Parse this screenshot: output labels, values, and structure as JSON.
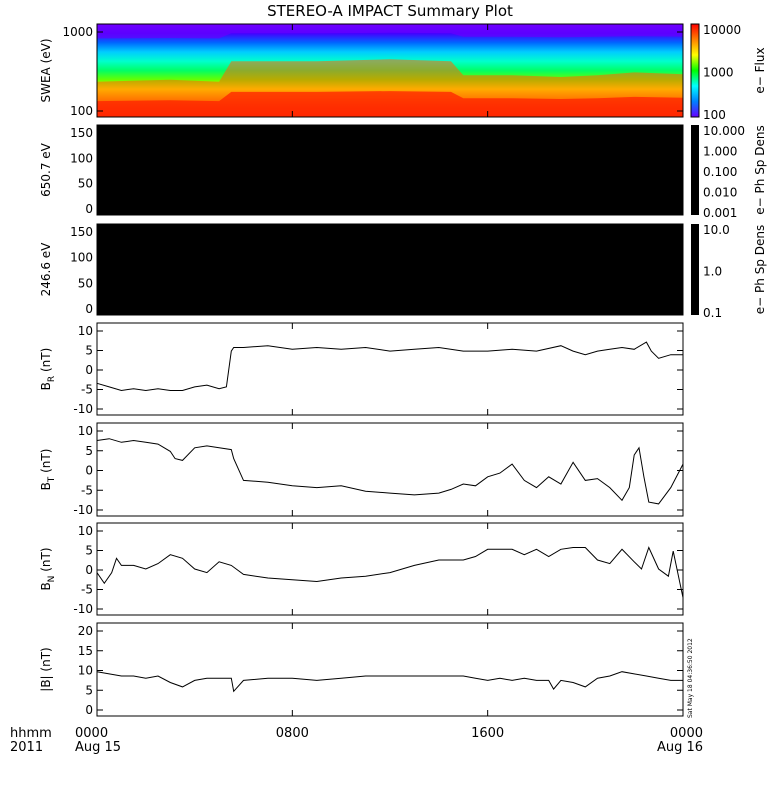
{
  "title": "STEREO-A IMPACT Summary Plot",
  "x_axis": {
    "left_label_line1": "hhmm",
    "left_label_line2": "2011",
    "ticks": [
      {
        "hour": 0,
        "line1": "0000",
        "line2": "Aug 15"
      },
      {
        "hour": 8,
        "line1": "0800",
        "line2": ""
      },
      {
        "hour": 16,
        "line1": "1600",
        "line2": ""
      },
      {
        "hour": 24,
        "line1": "0000",
        "line2": "Aug 16"
      }
    ]
  },
  "timestamp": "Sat May 18 04:36:50 2012",
  "colors": {
    "axis": "#000000",
    "line": "#000000",
    "background": "#ffffff",
    "fill_black": "#000000"
  },
  "chart_data": [
    {
      "type": "heatmap",
      "ylabel": "SWEA (eV)",
      "y_scale": "log",
      "y_ticks": [
        "1000",
        "100"
      ],
      "colorbar_label": "e− Flux",
      "colorbar_ticks": [
        "10000",
        "1000",
        "100"
      ],
      "colorbar_colors": [
        "#ff0000",
        "#ff8000",
        "#ffff00",
        "#00ff00",
        "#00ffff",
        "#0080ff",
        "#6600ff"
      ],
      "profile_hours": [
        0,
        3,
        5,
        5.5,
        9,
        12,
        14.5,
        15,
        17,
        19,
        20.5,
        22,
        24
      ],
      "profile_levels": [
        0.38,
        0.4,
        0.38,
        0.6,
        0.6,
        0.62,
        0.6,
        0.45,
        0.45,
        0.43,
        0.45,
        0.48,
        0.46
      ]
    },
    {
      "type": "heatmap",
      "ylabel": "650.7 eV",
      "y_ticks": [
        "150",
        "100",
        "50",
        "0"
      ],
      "colorbar_label": "e− Ph Sp Dens",
      "colorbar_ticks": [
        "10.000",
        "1.000",
        "0.100",
        "0.010",
        "0.001"
      ],
      "fill": "black"
    },
    {
      "type": "heatmap",
      "ylabel": "246.6 eV",
      "y_ticks": [
        "150",
        "100",
        "50",
        "0"
      ],
      "colorbar_label": "e− Ph Sp Dens",
      "colorbar_ticks": [
        "10.0",
        "1.0",
        "0.1"
      ],
      "fill": "black"
    },
    {
      "type": "line",
      "ylabel": "B",
      "ylabel_sub": "R",
      "ylabel_unit": " (nT)",
      "ylim": [
        -12,
        12
      ],
      "y_ticks": [
        "10",
        "5",
        "0",
        "-5",
        "-10"
      ],
      "x": [
        0,
        0.5,
        1,
        1.5,
        2,
        2.5,
        3,
        3.5,
        4,
        4.5,
        5,
        5.3,
        5.5,
        5.6,
        6,
        7,
        8,
        9,
        10,
        11,
        12,
        13,
        14,
        15,
        16,
        17,
        18,
        19,
        19.5,
        20,
        20.5,
        21,
        21.5,
        22,
        22.5,
        22.7,
        23,
        23.5,
        24
      ],
      "y": [
        -4,
        -5,
        -6,
        -5.5,
        -6,
        -5.5,
        -6,
        -6,
        -5,
        -4.5,
        -5.5,
        -5,
        5,
        6,
        6,
        6.5,
        5.5,
        6,
        5.5,
        6,
        5,
        5.5,
        6,
        5,
        5,
        5.5,
        5,
        6.5,
        5,
        4,
        5,
        5.5,
        6,
        5.5,
        7.5,
        5,
        3,
        4,
        4
      ]
    },
    {
      "type": "line",
      "ylabel": "B",
      "ylabel_sub": "T",
      "ylabel_unit": " (nT)",
      "ylim": [
        -12,
        12
      ],
      "y_ticks": [
        "10",
        "5",
        "0",
        "-5",
        "-10"
      ],
      "x": [
        0,
        0.5,
        1,
        1.5,
        2,
        2.5,
        3,
        3.2,
        3.5,
        4,
        4.5,
        5,
        5.5,
        5.6,
        6,
        7,
        8,
        9,
        10,
        11,
        12,
        13,
        14,
        14.5,
        15,
        15.5,
        16,
        16.5,
        17,
        17.5,
        18,
        18.5,
        19,
        19.5,
        20,
        20.5,
        21,
        21.5,
        21.8,
        22,
        22.2,
        22.4,
        22.6,
        23,
        23.5,
        24
      ],
      "y": [
        8,
        8.5,
        7.5,
        8,
        7.5,
        7,
        5,
        3,
        2.5,
        6,
        6.5,
        6,
        5.5,
        3,
        -3,
        -3.5,
        -4.5,
        -5,
        -4.5,
        -6,
        -6.5,
        -7,
        -6.5,
        -5.5,
        -4,
        -4.5,
        -2,
        -1,
        1.5,
        -3,
        -5,
        -2,
        -4,
        2,
        -3,
        -2.5,
        -5,
        -8.5,
        -5,
        4,
        6,
        -2,
        -9,
        -9.5,
        -5,
        1.5
      ]
    },
    {
      "type": "line",
      "ylabel": "B",
      "ylabel_sub": "N",
      "ylabel_unit": " (nT)",
      "ylim": [
        -12,
        12
      ],
      "y_ticks": [
        "10",
        "5",
        "0",
        "-5",
        "-10"
      ],
      "x": [
        0,
        0.3,
        0.6,
        0.8,
        1,
        1.5,
        2,
        2.5,
        3,
        3.5,
        4,
        4.5,
        5,
        5.5,
        6,
        7,
        8,
        9,
        10,
        11,
        12,
        13,
        14,
        15,
        15.5,
        16,
        17,
        17.5,
        18,
        18.5,
        19,
        19.5,
        20,
        20.5,
        21,
        21.5,
        22,
        22.3,
        22.6,
        23,
        23.4,
        23.6,
        24
      ],
      "y": [
        -1,
        -4,
        -1,
        3,
        1,
        1,
        0,
        1.5,
        4,
        3,
        0,
        -1,
        2,
        1,
        -1.5,
        -2.5,
        -3,
        -3.5,
        -2.5,
        -2,
        -1,
        1,
        2.5,
        2.5,
        3.5,
        5.5,
        5.5,
        4,
        5.5,
        3.5,
        5.5,
        6,
        6,
        2.5,
        1.5,
        5.5,
        2,
        0,
        6,
        0,
        -2,
        5,
        -8
      ]
    },
    {
      "type": "line",
      "ylabel": "|B| (nT)",
      "ylim": [
        0,
        20
      ],
      "y_ticks": [
        "20",
        "15",
        "10",
        "5",
        "0"
      ],
      "x": [
        0,
        0.5,
        1,
        1.5,
        2,
        2.5,
        3,
        3.5,
        4,
        4.5,
        5,
        5.5,
        5.6,
        6,
        7,
        8,
        9,
        10,
        11,
        12,
        13,
        14,
        15,
        15.5,
        16,
        16.5,
        17,
        17.5,
        18,
        18.5,
        18.7,
        19,
        19.5,
        20,
        20.5,
        21,
        21.5,
        22,
        22.5,
        23,
        23.5,
        24
      ],
      "y": [
        9.5,
        9,
        8.5,
        8.5,
        8,
        8.5,
        7,
        6,
        7.5,
        8,
        8,
        8,
        5,
        7.5,
        8,
        8,
        7.5,
        8,
        8.5,
        8.5,
        8.5,
        8.5,
        8.5,
        8,
        7.5,
        8,
        7.5,
        8,
        7.5,
        7.5,
        5.5,
        7.5,
        7,
        6,
        8,
        8.5,
        9.5,
        9,
        8.5,
        8,
        7.5,
        7.5
      ]
    }
  ]
}
